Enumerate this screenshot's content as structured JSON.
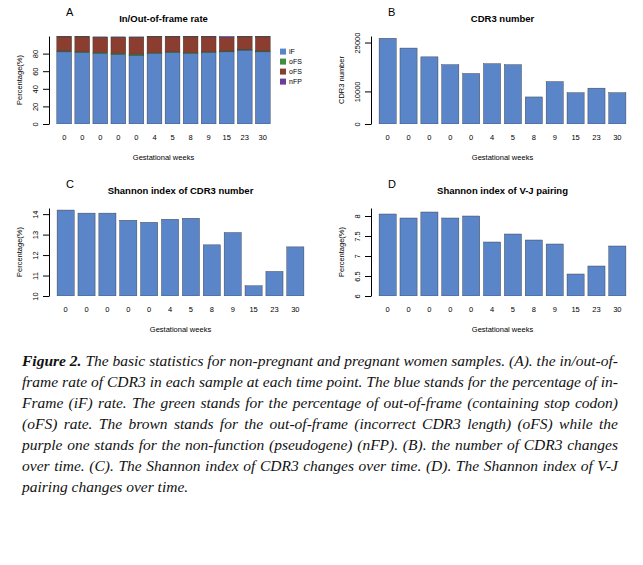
{
  "chart_data": [
    {
      "type": "bar",
      "stacked": true,
      "title": "In/Out-of-frame rate",
      "annotations": [
        "A"
      ],
      "x_label": "Gestational weeks",
      "y_label": "Percentage(%)",
      "categories": [
        "0",
        "0",
        "0",
        "0",
        "0",
        "4",
        "5",
        "8",
        "9",
        "15",
        "23",
        "30"
      ],
      "series": [
        {
          "name": "iF",
          "color": "#5a85c8",
          "values": [
            82,
            81,
            80,
            79,
            78,
            80,
            81,
            80,
            81,
            82,
            84,
            82
          ]
        },
        {
          "name": "oFS",
          "color": "#3f8f3f",
          "values": [
            1,
            1,
            1.5,
            1.5,
            1.5,
            1,
            1,
            1,
            1,
            1,
            1,
            1
          ]
        },
        {
          "name": "oFS",
          "color": "#8b3e2f",
          "values": [
            16,
            17,
            17,
            18,
            19,
            18,
            17,
            18,
            17,
            15,
            14,
            16
          ]
        },
        {
          "name": "nFP",
          "color": "#6a3d9a",
          "values": [
            0.5,
            0.5,
            0.5,
            0.5,
            0.5,
            0.5,
            0.5,
            0.5,
            0.5,
            1.5,
            0.5,
            0.5
          ]
        }
      ],
      "legend": "right",
      "ylim": [
        0,
        100
      ],
      "yticks": [
        0,
        20,
        40,
        60,
        80
      ]
    },
    {
      "type": "bar",
      "title": "CDR3 number",
      "annotations": [
        "B"
      ],
      "x_label": "Gestational weeks",
      "y_label": "CDR3 number",
      "categories": [
        "0",
        "0",
        "0",
        "0",
        "0",
        "4",
        "5",
        "8",
        "9",
        "15",
        "23",
        "30"
      ],
      "values": [
        26300,
        23300,
        20600,
        18200,
        15500,
        18500,
        18200,
        8300,
        13000,
        9600,
        11000,
        9600
      ],
      "color": "#5a85c8",
      "ylim": [
        0,
        27000
      ],
      "yticks": [
        0,
        10000,
        25000
      ]
    },
    {
      "type": "bar",
      "title": "Shannon index of CDR3 number",
      "annotations": [
        "C"
      ],
      "x_label": "Gestational weeks",
      "y_label": "Percentage(%)",
      "categories": [
        "0",
        "0",
        "0",
        "0",
        "0",
        "4",
        "5",
        "8",
        "9",
        "15",
        "23",
        "30"
      ],
      "values": [
        14.2,
        14.05,
        14.05,
        13.7,
        13.6,
        13.75,
        13.8,
        12.5,
        13.1,
        10.5,
        11.2,
        12.4
      ],
      "color": "#5a85c8",
      "ylim": [
        10,
        14.3
      ],
      "yticks": [
        10,
        11,
        12,
        13,
        14
      ]
    },
    {
      "type": "bar",
      "title": "Shannon index of V-J pairing",
      "annotations": [
        "D"
      ],
      "x_label": "Gestational weeks",
      "y_label": "Percentage(%)",
      "categories": [
        "0",
        "0",
        "0",
        "0",
        "0",
        "4",
        "5",
        "8",
        "9",
        "15",
        "23",
        "30"
      ],
      "values": [
        8.05,
        7.95,
        8.1,
        7.95,
        8.0,
        7.35,
        7.55,
        7.4,
        7.3,
        6.55,
        6.75,
        7.25
      ],
      "color": "#5a85c8",
      "ylim": [
        6,
        8.2
      ],
      "yticks": [
        6,
        6.5,
        7,
        7.5,
        8
      ]
    }
  ],
  "caption": {
    "label": "Figure 2.",
    "text": "The basic statistics for non-pregnant and pregnant women samples. (A). the in/out-of-frame rate of CDR3 in each sample at each time point. The blue stands for the percentage of in-Frame (iF) rate. The green stands for the percentage of out-of-frame (containing stop codon) (oFS) rate. The brown stands for the out-of-frame (incorrect CDR3 length) (oFS) while the purple one stands for the non-function (pseudogene) (nFP). (B). the number of CDR3 changes over time. (C). The Shannon index of CDR3 changes over time. (D). The Shannon index of V-J pairing changes over time."
  }
}
